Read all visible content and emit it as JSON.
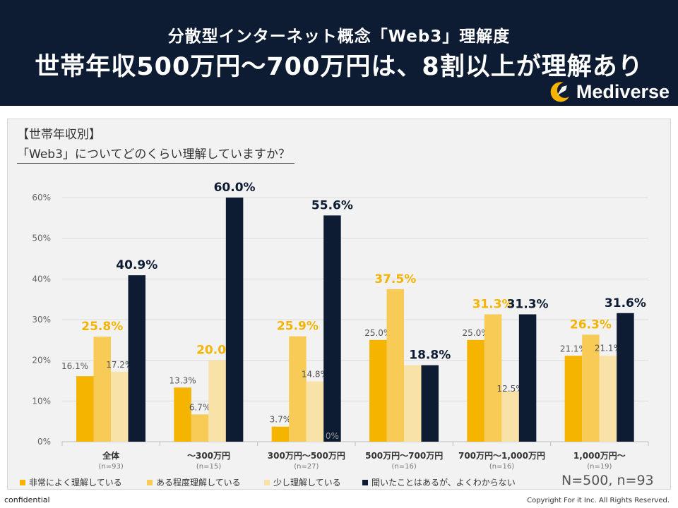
{
  "header": {
    "subtitle": "分散型インターネット概念「Web3」理解度",
    "title": "世帯年収500万円〜700万円は、8割以上が理解あり",
    "logo_text": "Mediverse"
  },
  "question": {
    "label": "【世帯年収別】",
    "text": "「Web3」についてどのくらい理解していますか？"
  },
  "sample_note": "N=500, n=93",
  "footer": {
    "left": "confidential",
    "right": "Copyright For it Inc. All Rights Reserved."
  },
  "colors": {
    "header_bg": "#0d1b33",
    "s0": "#f5b400",
    "s1": "#f8cb57",
    "s2": "#f8e2a8",
    "s3": "#0d1b33",
    "highlight_label": "#f5b400"
  },
  "chart_data": {
    "type": "bar",
    "categories": [
      "全体",
      "〜300万円",
      "300万円〜500万円",
      "500万円〜700万円",
      "700万円〜1,000万円",
      "1,000万円〜"
    ],
    "sub_labels": [
      "(n=93)",
      "(n=15)",
      "(n=27)",
      "(n=16)",
      "(n=16)",
      "(n=19)"
    ],
    "series": [
      {
        "name": "非常によく理解している",
        "values": [
          16.1,
          13.3,
          3.7,
          25.0,
          25.0,
          21.1
        ]
      },
      {
        "name": "ある程度理解している",
        "values": [
          25.8,
          6.7,
          25.9,
          37.5,
          31.3,
          26.3
        ]
      },
      {
        "name": "少し理解している",
        "values": [
          17.2,
          20.0,
          14.8,
          18.8,
          12.5,
          21.1
        ]
      },
      {
        "name": "聞いたことはあるが、よくわからない",
        "values": [
          40.9,
          60.0,
          55.6,
          18.8,
          31.3,
          31.6
        ]
      }
    ],
    "labels": [
      [
        "16.1%",
        "25.8%",
        "17.2%",
        "40.9%"
      ],
      [
        "13.3%",
        "6.7%",
        "20.0%",
        "60.0%"
      ],
      [
        "3.7%",
        "25.9%",
        "14.8%",
        "55.6%"
      ],
      [
        "25.0%",
        "37.5%",
        "",
        "18.8%"
      ],
      [
        "25.0%",
        "31.3%",
        "12.5%",
        "31.3%"
      ],
      [
        "21.1%",
        "26.3%",
        "21.1%",
        "31.6%"
      ]
    ],
    "extra_annotation": "0%",
    "y_ticks": [
      "0%",
      "10%",
      "20%",
      "30%",
      "40%",
      "50%",
      "60%"
    ],
    "ylim": [
      0,
      60
    ],
    "grid": true,
    "legend_position": "bottom"
  }
}
